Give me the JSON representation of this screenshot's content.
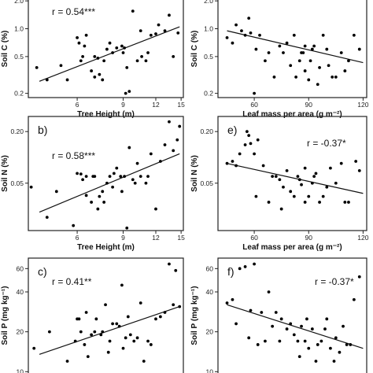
{
  "chart_data": [
    {
      "id": "a",
      "type": "scatter",
      "panel_label": "",
      "r_label": "r = 0.54***",
      "xlabel": "Tree Height (m)",
      "ylabel": "Soil C (%)",
      "xscale": "log",
      "yscale": "log",
      "xlim": [
        3.9,
        15.3
      ],
      "ylim": [
        0.18,
        2.3
      ],
      "xticks": [
        6,
        9,
        12,
        15
      ],
      "xtick_labels": [
        "6",
        "9",
        "12",
        "15"
      ],
      "yticks": [
        0.2,
        0.5,
        1.0,
        2.0
      ],
      "ytick_labels": [
        "0.2",
        "0.5",
        "1.0",
        "2.0"
      ],
      "fit": [
        [
          4.3,
          0.27
        ],
        [
          14.8,
          1.05
        ]
      ],
      "x": [
        4.2,
        4.6,
        5.2,
        5.5,
        6.0,
        6.1,
        6.2,
        6.3,
        6.4,
        6.5,
        6.8,
        7.0,
        7.0,
        7.2,
        7.3,
        7.5,
        7.6,
        7.8,
        8.0,
        8.2,
        8.5,
        8.9,
        9.0,
        9.1,
        9.2,
        9.3,
        9.5,
        9.8,
        10.2,
        10.5,
        10.6,
        11.0,
        11.2,
        11.5,
        12.0,
        12.3,
        13.0,
        13.5,
        14.0,
        14.6
      ],
      "y": [
        0.38,
        0.28,
        0.4,
        0.28,
        0.8,
        0.7,
        0.45,
        0.5,
        0.65,
        0.85,
        0.35,
        0.5,
        0.3,
        0.48,
        0.32,
        0.28,
        0.45,
        0.6,
        0.7,
        0.55,
        0.62,
        0.65,
        0.55,
        0.62,
        0.2,
        0.38,
        0.21,
        1.55,
        0.45,
        0.95,
        0.5,
        0.45,
        0.55,
        0.85,
        0.88,
        1.1,
        0.95,
        1.4,
        0.5,
        0.9
      ]
    },
    {
      "id": "d",
      "type": "scatter",
      "panel_label": "",
      "r_label": "",
      "xlabel": "Leaf mass per area (g m⁻²)",
      "ylabel": "Soil C (%)",
      "xscale": "linear",
      "yscale": "log",
      "xlim": [
        40,
        122
      ],
      "ylim": [
        0.18,
        2.3
      ],
      "xticks": [
        60,
        90,
        120
      ],
      "xtick_labels": [
        "60",
        "90",
        "120"
      ],
      "yticks": [
        0.2,
        0.5,
        1.0,
        2.0
      ],
      "ytick_labels": [
        "0.2",
        "0.5",
        "1.0",
        "2.0"
      ],
      "fit": [
        [
          45,
          0.95
        ],
        [
          120,
          0.43
        ]
      ],
      "x": [
        45,
        48,
        50,
        53,
        55,
        57,
        58,
        60,
        61,
        63,
        66,
        68,
        71,
        74,
        76,
        78,
        80,
        82,
        83,
        85,
        86,
        87,
        88,
        88,
        90,
        91,
        92,
        93,
        95,
        96,
        98,
        100,
        101,
        103,
        105,
        108,
        110,
        112,
        115,
        118
      ],
      "y": [
        0.8,
        0.7,
        1.1,
        0.95,
        0.85,
        1.3,
        0.9,
        0.2,
        0.6,
        0.85,
        0.45,
        0.55,
        0.3,
        0.65,
        0.55,
        0.7,
        0.4,
        0.85,
        0.3,
        0.45,
        0.55,
        0.55,
        0.65,
        0.35,
        0.28,
        0.45,
        0.6,
        0.65,
        0.25,
        0.38,
        0.85,
        0.6,
        0.4,
        0.3,
        0.3,
        0.55,
        0.35,
        0.45,
        0.85,
        0.6
      ]
    },
    {
      "id": "b",
      "type": "scatter",
      "panel_label": "b)",
      "r_label": "r = 0.58***",
      "xlabel": "Tree Height (m)",
      "ylabel": "Soil N (%)",
      "xscale": "log",
      "yscale": "log",
      "xlim": [
        3.9,
        15.3
      ],
      "ylim": [
        0.014,
        0.3
      ],
      "xticks": [
        6,
        9,
        12,
        15
      ],
      "xtick_labels": [
        "6",
        "9",
        "12",
        "15"
      ],
      "yticks": [
        0.05,
        0.2
      ],
      "ytick_labels": [
        "0.05",
        "0.20"
      ],
      "fit": [
        [
          4.3,
          0.023
        ],
        [
          14.8,
          0.11
        ]
      ],
      "x": [
        4.0,
        4.6,
        5.0,
        5.8,
        6.0,
        6.2,
        6.3,
        6.5,
        6.5,
        6.8,
        6.9,
        7.0,
        7.2,
        7.3,
        7.5,
        7.6,
        7.8,
        8.0,
        8.2,
        8.3,
        8.5,
        8.8,
        8.9,
        9.1,
        9.3,
        9.5,
        9.8,
        10.0,
        10.2,
        10.5,
        11.0,
        11.2,
        11.5,
        12.0,
        12.5,
        13.0,
        13.5,
        14.0,
        14.5,
        14.8
      ],
      "y": [
        0.045,
        0.02,
        0.04,
        0.016,
        0.065,
        0.064,
        0.055,
        0.036,
        0.06,
        0.03,
        0.06,
        0.06,
        0.025,
        0.035,
        0.04,
        0.03,
        0.05,
        0.06,
        0.045,
        0.065,
        0.075,
        0.06,
        0.04,
        0.06,
        0.015,
        0.13,
        0.055,
        0.05,
        0.085,
        0.06,
        0.05,
        0.06,
        0.11,
        0.025,
        0.09,
        0.14,
        0.26,
        0.12,
        0.16,
        0.23
      ]
    },
    {
      "id": "e",
      "type": "scatter",
      "panel_label": "e)",
      "r_label": "r = -0.37*",
      "xlabel": "Leaf mass per area (g m⁻²)",
      "ylabel": "Soil N (%)",
      "xscale": "linear",
      "yscale": "log",
      "xlim": [
        40,
        122
      ],
      "ylim": [
        0.014,
        0.3
      ],
      "xticks": [
        60,
        90,
        120
      ],
      "xtick_labels": [
        "60",
        "90",
        "120"
      ],
      "yticks": [
        0.05,
        0.2
      ],
      "ytick_labels": [
        "0.05",
        "0.20"
      ],
      "fit": [
        [
          45,
          0.085
        ],
        [
          120,
          0.038
        ]
      ],
      "x": [
        45,
        48,
        50,
        52,
        55,
        56,
        57,
        58,
        60,
        61,
        62,
        65,
        68,
        70,
        72,
        74,
        75,
        76,
        78,
        80,
        82,
        84,
        85,
        86,
        88,
        88,
        90,
        92,
        93,
        94,
        96,
        98,
        100,
        102,
        105,
        108,
        110,
        112,
        116,
        118
      ],
      "y": [
        0.085,
        0.09,
        0.08,
        0.11,
        0.14,
        0.2,
        0.18,
        0.145,
        0.11,
        0.035,
        0.16,
        0.08,
        0.03,
        0.06,
        0.06,
        0.055,
        0.025,
        0.045,
        0.07,
        0.04,
        0.035,
        0.06,
        0.055,
        0.048,
        0.075,
        0.03,
        0.035,
        0.05,
        0.06,
        0.065,
        0.03,
        0.035,
        0.045,
        0.075,
        0.05,
        0.085,
        0.03,
        0.03,
        0.09,
        0.07
      ]
    },
    {
      "id": "c",
      "type": "scatter",
      "panel_label": "c)",
      "r_label": "r = 0.41**",
      "xlabel": "",
      "ylabel": "Soil P (mg kg⁻¹)",
      "xscale": "log",
      "yscale": "log",
      "xlim": [
        3.9,
        15.3
      ],
      "ylim": [
        9,
        72
      ],
      "xticks": [],
      "xtick_labels": [],
      "yticks": [
        10,
        20,
        40,
        60
      ],
      "ytick_labels": [
        "10",
        "20",
        "40",
        "60"
      ],
      "fit": [
        [
          4.3,
          13.5
        ],
        [
          14.8,
          31
        ]
      ],
      "x": [
        4.1,
        4.7,
        5.5,
        5.9,
        6.0,
        6.1,
        6.2,
        6.4,
        6.5,
        6.6,
        6.8,
        7.0,
        7.1,
        7.3,
        7.4,
        7.5,
        7.7,
        7.9,
        8.0,
        8.2,
        8.5,
        8.7,
        8.9,
        9.0,
        9.2,
        9.4,
        9.6,
        9.9,
        10.2,
        10.5,
        10.8,
        11.2,
        11.5,
        12.0,
        12.5,
        13.0,
        13.5,
        14.0,
        14.3,
        14.8
      ],
      "y": [
        15,
        20,
        12,
        17,
        25,
        25,
        20,
        16,
        28,
        13,
        19,
        20,
        25,
        9,
        19,
        20,
        32,
        14,
        17,
        23,
        23,
        22,
        45,
        15,
        18,
        26,
        19,
        17,
        18,
        33,
        12,
        17,
        16,
        25,
        26,
        28,
        65,
        32,
        58,
        31
      ]
    },
    {
      "id": "f",
      "type": "scatter",
      "panel_label": "f)",
      "r_label": "r = -0.37*",
      "xlabel": "",
      "ylabel": "Soil P (mg kg⁻¹)",
      "xscale": "linear",
      "yscale": "log",
      "xlim": [
        40,
        122
      ],
      "ylim": [
        9,
        72
      ],
      "xticks": [],
      "xtick_labels": [],
      "yticks": [
        10,
        20,
        40,
        60
      ],
      "ytick_labels": [
        "10",
        "20",
        "40",
        "60"
      ],
      "fit": [
        [
          45,
          32
        ],
        [
          120,
          15
        ]
      ],
      "x": [
        45,
        48,
        50,
        52,
        55,
        57,
        58,
        60,
        62,
        64,
        66,
        68,
        70,
        72,
        74,
        75,
        78,
        80,
        82,
        84,
        85,
        86,
        88,
        89,
        90,
        92,
        94,
        95,
        97,
        99,
        100,
        102,
        104,
        105,
        107,
        109,
        111,
        113,
        115,
        118
      ],
      "y": [
        33,
        35,
        23,
        60,
        62,
        18,
        29,
        65,
        16,
        28,
        17,
        40,
        22,
        28,
        17,
        25,
        21,
        23,
        19,
        17,
        13,
        22,
        17,
        25,
        15,
        21,
        12,
        16,
        17,
        21,
        25,
        15,
        12,
        18,
        14,
        22,
        16,
        16,
        35,
        52
      ]
    }
  ]
}
